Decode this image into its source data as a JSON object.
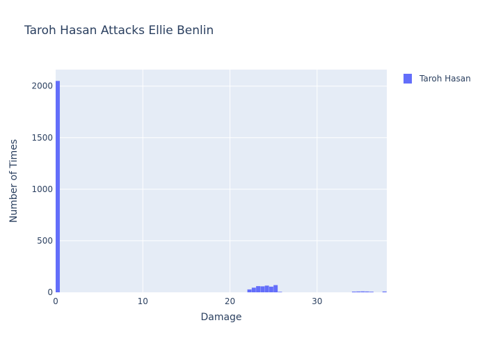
{
  "chart_data": {
    "type": "bar",
    "title": "Taroh Hasan Attacks Ellie Benlin",
    "xlabel": "Damage",
    "ylabel": "Number of Times",
    "xlim": [
      0,
      38
    ],
    "ylim": [
      0,
      2160
    ],
    "x_ticks": [
      0,
      10,
      20,
      30
    ],
    "y_ticks": [
      0,
      500,
      1000,
      1500,
      2000
    ],
    "grid": true,
    "legend_position": "top-right",
    "bin_width": 0.5,
    "series": [
      {
        "name": "Taroh Hasan",
        "color": "#636efa",
        "bins": [
          {
            "x": 0.0,
            "count": 2050
          },
          {
            "x": 22.0,
            "count": 28
          },
          {
            "x": 22.5,
            "count": 45
          },
          {
            "x": 23.0,
            "count": 60
          },
          {
            "x": 23.5,
            "count": 58
          },
          {
            "x": 24.0,
            "count": 65
          },
          {
            "x": 24.5,
            "count": 55
          },
          {
            "x": 25.0,
            "count": 70
          },
          {
            "x": 25.5,
            "count": 5
          },
          {
            "x": 34.0,
            "count": 7
          },
          {
            "x": 34.5,
            "count": 8
          },
          {
            "x": 35.0,
            "count": 9
          },
          {
            "x": 35.5,
            "count": 8
          },
          {
            "x": 36.0,
            "count": 6
          },
          {
            "x": 37.5,
            "count": 8
          }
        ]
      }
    ]
  }
}
